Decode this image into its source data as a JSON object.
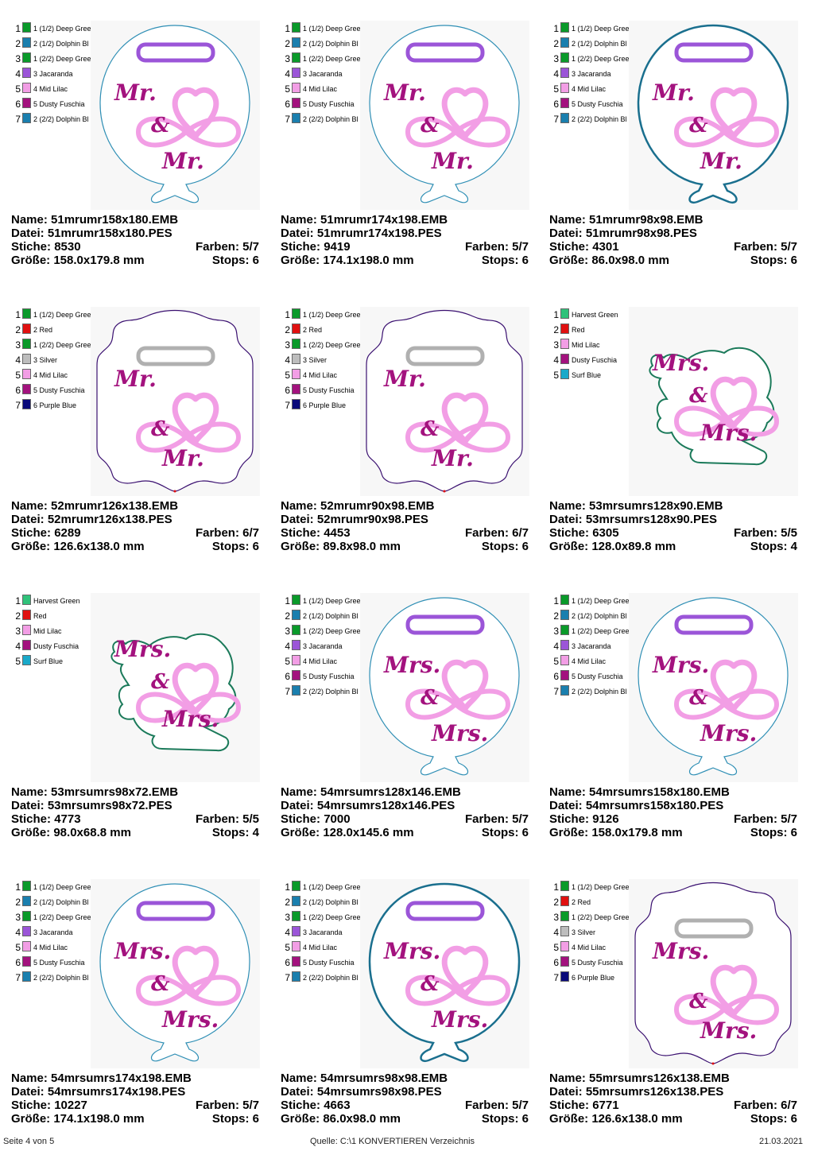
{
  "labels": {
    "name": "Name:",
    "file": "Datei:",
    "stitches": "Stiche:",
    "colors": "Farben:",
    "size": "Größe:",
    "stops": "Stops:"
  },
  "footer": {
    "page": "Seite 4 von 5",
    "source": "Quelle: C:\\1 KONVERTIEREN Verzeichnis",
    "date": "21.03.2021"
  },
  "cards": [
    {
      "name": "51mrumr158x180.EMB",
      "file": "51mrumr158x180.PES",
      "stitches": "8530",
      "colors": "5/7",
      "size": "158.0x179.8 mm",
      "stops": "6",
      "shape": "balloon",
      "text1": "Mr.",
      "text3": "Mr.",
      "outline": "#2f8fb5",
      "tab": "#9b55d8",
      "legend": [
        {
          "n": "1",
          "label": "1 (1/2) Deep Gree",
          "color": "#0a9a2a"
        },
        {
          "n": "2",
          "label": "2 (1/2) Dolphin Bl",
          "color": "#1a7fae"
        },
        {
          "n": "3",
          "label": "1 (2/2) Deep Gree",
          "color": "#0a9a2a"
        },
        {
          "n": "4",
          "label": "3 Jacaranda",
          "color": "#9b55d8"
        },
        {
          "n": "5",
          "label": "4 Mid Lilac",
          "color": "#f29ee5"
        },
        {
          "n": "6",
          "label": "5 Dusty Fuschia",
          "color": "#a3127e"
        },
        {
          "n": "7",
          "label": "2 (2/2) Dolphin Bl",
          "color": "#1a7fae"
        }
      ]
    },
    {
      "name": "51mrumr174x198.EMB",
      "file": "51mrumr174x198.PES",
      "stitches": "9419",
      "colors": "5/7",
      "size": "174.1x198.0 mm",
      "stops": "6",
      "shape": "balloon",
      "text1": "Mr.",
      "text3": "Mr.",
      "outline": "#2f8fb5",
      "tab": "#9b55d8",
      "legend": [
        {
          "n": "1",
          "label": "1 (1/2) Deep Gree",
          "color": "#0a9a2a"
        },
        {
          "n": "2",
          "label": "2 (1/2) Dolphin Bl",
          "color": "#1a7fae"
        },
        {
          "n": "3",
          "label": "1 (2/2) Deep Gree",
          "color": "#0a9a2a"
        },
        {
          "n": "4",
          "label": "3 Jacaranda",
          "color": "#9b55d8"
        },
        {
          "n": "5",
          "label": "4 Mid Lilac",
          "color": "#f29ee5"
        },
        {
          "n": "6",
          "label": "5 Dusty Fuschia",
          "color": "#a3127e"
        },
        {
          "n": "7",
          "label": "2 (2/2) Dolphin Bl",
          "color": "#1a7fae"
        }
      ]
    },
    {
      "name": "51mrumr98x98.EMB",
      "file": "51mrumr98x98.PES",
      "stitches": "4301",
      "colors": "5/7",
      "size": "86.0x98.0 mm",
      "stops": "6",
      "shape": "balloon",
      "text1": "Mr.",
      "text3": "Mr.",
      "outline": "#1a6f8e",
      "tab": "#9b55d8",
      "legend": [
        {
          "n": "1",
          "label": "1 (1/2) Deep Gree",
          "color": "#0a9a2a"
        },
        {
          "n": "2",
          "label": "2 (1/2) Dolphin Bl",
          "color": "#1a7fae"
        },
        {
          "n": "3",
          "label": "1 (2/2) Deep Gree",
          "color": "#0a9a2a"
        },
        {
          "n": "4",
          "label": "3 Jacaranda",
          "color": "#9b55d8"
        },
        {
          "n": "5",
          "label": "4 Mid Lilac",
          "color": "#f29ee5"
        },
        {
          "n": "6",
          "label": "5 Dusty Fuschia",
          "color": "#a3127e"
        },
        {
          "n": "7",
          "label": "2 (2/2) Dolphin Bl",
          "color": "#1a7fae"
        }
      ]
    },
    {
      "name": "52mrumr126x138.EMB",
      "file": "52mrumr126x138.PES",
      "stitches": "6289",
      "colors": "6/7",
      "size": "126.6x138.0 mm",
      "stops": "6",
      "shape": "frame",
      "text1": "Mr.",
      "text3": "Mr.",
      "outline": "#3a1070",
      "tab": "#b0b0b0",
      "legend": [
        {
          "n": "1",
          "label": "1 (1/2) Deep Gree",
          "color": "#0a9a2a"
        },
        {
          "n": "2",
          "label": "2 Red",
          "color": "#e01010"
        },
        {
          "n": "3",
          "label": "1 (2/2) Deep Gree",
          "color": "#0a9a2a"
        },
        {
          "n": "4",
          "label": "3 Silver",
          "color": "#bdbdbd"
        },
        {
          "n": "5",
          "label": "4 Mid Lilac",
          "color": "#f29ee5"
        },
        {
          "n": "6",
          "label": "5 Dusty Fuschia",
          "color": "#a3127e"
        },
        {
          "n": "7",
          "label": "6 Purple Blue",
          "color": "#0a0a7a"
        }
      ]
    },
    {
      "name": "52mrumr90x98.EMB",
      "file": "52mrumr90x98.PES",
      "stitches": "4453",
      "colors": "6/7",
      "size": "89.8x98.0 mm",
      "stops": "6",
      "shape": "frame",
      "text1": "Mr.",
      "text3": "Mr.",
      "outline": "#3a1070",
      "tab": "#b0b0b0",
      "legend": [
        {
          "n": "1",
          "label": "1 (1/2) Deep Gree",
          "color": "#0a9a2a"
        },
        {
          "n": "2",
          "label": "2 Red",
          "color": "#e01010"
        },
        {
          "n": "3",
          "label": "1 (2/2) Deep Gree",
          "color": "#0a9a2a"
        },
        {
          "n": "4",
          "label": "3 Silver",
          "color": "#bdbdbd"
        },
        {
          "n": "5",
          "label": "4 Mid Lilac",
          "color": "#f29ee5"
        },
        {
          "n": "6",
          "label": "5 Dusty Fuschia",
          "color": "#a3127e"
        },
        {
          "n": "7",
          "label": "6 Purple Blue",
          "color": "#0a0a7a"
        }
      ]
    },
    {
      "name": "53mrsumrs128x90.EMB",
      "file": "53mrsumrs128x90.PES",
      "stitches": "6305",
      "colors": "5/5",
      "size": "128.0x89.8 mm",
      "stops": "4",
      "shape": "applique",
      "text1": "Mrs.",
      "text3": "Mrs.",
      "outline": "#1b7a5a",
      "tab": "",
      "legend": [
        {
          "n": "1",
          "label": "Harvest Green",
          "color": "#2fc27a"
        },
        {
          "n": "2",
          "label": "Red",
          "color": "#e01010"
        },
        {
          "n": "3",
          "label": "Mid Lilac",
          "color": "#f29ee5"
        },
        {
          "n": "4",
          "label": "Dusty Fuschia",
          "color": "#a3127e"
        },
        {
          "n": "5",
          "label": "Surf Blue",
          "color": "#19a9c9"
        }
      ]
    },
    {
      "name": "53mrsumrs98x72.EMB",
      "file": "53mrsumrs98x72.PES",
      "stitches": "4773",
      "colors": "5/5",
      "size": "98.0x68.8 mm",
      "stops": "4",
      "shape": "applique",
      "text1": "Mrs.",
      "text3": "Mrs.",
      "outline": "#1b7a5a",
      "tab": "",
      "legend": [
        {
          "n": "1",
          "label": "Harvest Green",
          "color": "#2fc27a"
        },
        {
          "n": "2",
          "label": "Red",
          "color": "#e01010"
        },
        {
          "n": "3",
          "label": "Mid Lilac",
          "color": "#f29ee5"
        },
        {
          "n": "4",
          "label": "Dusty Fuschia",
          "color": "#a3127e"
        },
        {
          "n": "5",
          "label": "Surf Blue",
          "color": "#19a9c9"
        }
      ]
    },
    {
      "name": "54mrsumrs128x146.EMB",
      "file": "54mrsumrs128x146.PES",
      "stitches": "7000",
      "colors": "5/7",
      "size": "128.0x145.6 mm",
      "stops": "6",
      "shape": "balloon",
      "text1": "Mrs.",
      "text3": "Mrs.",
      "outline": "#2f8fb5",
      "tab": "#9b55d8",
      "legend": [
        {
          "n": "1",
          "label": "1 (1/2) Deep Gree",
          "color": "#0a9a2a"
        },
        {
          "n": "2",
          "label": "2 (1/2) Dolphin Bl",
          "color": "#1a7fae"
        },
        {
          "n": "3",
          "label": "1 (2/2) Deep Gree",
          "color": "#0a9a2a"
        },
        {
          "n": "4",
          "label": "3 Jacaranda",
          "color": "#9b55d8"
        },
        {
          "n": "5",
          "label": "4 Mid Lilac",
          "color": "#f29ee5"
        },
        {
          "n": "6",
          "label": "5 Dusty Fuschia",
          "color": "#a3127e"
        },
        {
          "n": "7",
          "label": "2 (2/2) Dolphin Bl",
          "color": "#1a7fae"
        }
      ]
    },
    {
      "name": "54mrsumrs158x180.EMB",
      "file": "54mrsumrs158x180.PES",
      "stitches": "9126",
      "colors": "5/7",
      "size": "158.0x179.8 mm",
      "stops": "6",
      "shape": "balloon",
      "text1": "Mrs.",
      "text3": "Mrs.",
      "outline": "#2f8fb5",
      "tab": "#9b55d8",
      "legend": [
        {
          "n": "1",
          "label": "1 (1/2) Deep Gree",
          "color": "#0a9a2a"
        },
        {
          "n": "2",
          "label": "2 (1/2) Dolphin Bl",
          "color": "#1a7fae"
        },
        {
          "n": "3",
          "label": "1 (2/2) Deep Gree",
          "color": "#0a9a2a"
        },
        {
          "n": "4",
          "label": "3 Jacaranda",
          "color": "#9b55d8"
        },
        {
          "n": "5",
          "label": "4 Mid Lilac",
          "color": "#f29ee5"
        },
        {
          "n": "6",
          "label": "5 Dusty Fuschia",
          "color": "#a3127e"
        },
        {
          "n": "7",
          "label": "2 (2/2) Dolphin Bl",
          "color": "#1a7fae"
        }
      ]
    },
    {
      "name": "54mrsumrs174x198.EMB",
      "file": "54mrsumrs174x198.PES",
      "stitches": "10227",
      "colors": "5/7",
      "size": "174.1x198.0 mm",
      "stops": "6",
      "shape": "balloon",
      "text1": "Mrs.",
      "text3": "Mrs.",
      "outline": "#2f8fb5",
      "tab": "#9b55d8",
      "legend": [
        {
          "n": "1",
          "label": "1 (1/2) Deep Gree",
          "color": "#0a9a2a"
        },
        {
          "n": "2",
          "label": "2 (1/2) Dolphin Bl",
          "color": "#1a7fae"
        },
        {
          "n": "3",
          "label": "1 (2/2) Deep Gree",
          "color": "#0a9a2a"
        },
        {
          "n": "4",
          "label": "3 Jacaranda",
          "color": "#9b55d8"
        },
        {
          "n": "5",
          "label": "4 Mid Lilac",
          "color": "#f29ee5"
        },
        {
          "n": "6",
          "label": "5 Dusty Fuschia",
          "color": "#a3127e"
        },
        {
          "n": "7",
          "label": "2 (2/2) Dolphin Bl",
          "color": "#1a7fae"
        }
      ]
    },
    {
      "name": "54mrsumrs98x98.EMB",
      "file": "54mrsumrs98x98.PES",
      "stitches": "4663",
      "colors": "5/7",
      "size": "86.0x98.0 mm",
      "stops": "6",
      "shape": "balloon",
      "text1": "Mrs.",
      "text3": "Mrs.",
      "outline": "#1a6f8e",
      "tab": "#9b55d8",
      "legend": [
        {
          "n": "1",
          "label": "1 (1/2) Deep Gree",
          "color": "#0a9a2a"
        },
        {
          "n": "2",
          "label": "2 (1/2) Dolphin Bl",
          "color": "#1a7fae"
        },
        {
          "n": "3",
          "label": "1 (2/2) Deep Gree",
          "color": "#0a9a2a"
        },
        {
          "n": "4",
          "label": "3 Jacaranda",
          "color": "#9b55d8"
        },
        {
          "n": "5",
          "label": "4 Mid Lilac",
          "color": "#f29ee5"
        },
        {
          "n": "6",
          "label": "5 Dusty Fuschia",
          "color": "#a3127e"
        },
        {
          "n": "7",
          "label": "2 (2/2) Dolphin Bl",
          "color": "#1a7fae"
        }
      ]
    },
    {
      "name": "55mrsumrs126x138.EMB",
      "file": "55mrsumrs126x138.PES",
      "stitches": "6771",
      "colors": "6/7",
      "size": "126.6x138.0 mm",
      "stops": "6",
      "shape": "frame",
      "text1": "Mrs.",
      "text3": "Mrs.",
      "outline": "#3a1070",
      "tab": "#b0b0b0",
      "legend": [
        {
          "n": "1",
          "label": "1 (1/2) Deep Gree",
          "color": "#0a9a2a"
        },
        {
          "n": "2",
          "label": "2 Red",
          "color": "#e01010"
        },
        {
          "n": "3",
          "label": "1 (2/2) Deep Gree",
          "color": "#0a9a2a"
        },
        {
          "n": "4",
          "label": "3 Silver",
          "color": "#bdbdbd"
        },
        {
          "n": "5",
          "label": "4 Mid Lilac",
          "color": "#f29ee5"
        },
        {
          "n": "6",
          "label": "5 Dusty Fuschia",
          "color": "#a3127e"
        },
        {
          "n": "7",
          "label": "6 Purple Blue",
          "color": "#0a0a7a"
        }
      ]
    }
  ]
}
